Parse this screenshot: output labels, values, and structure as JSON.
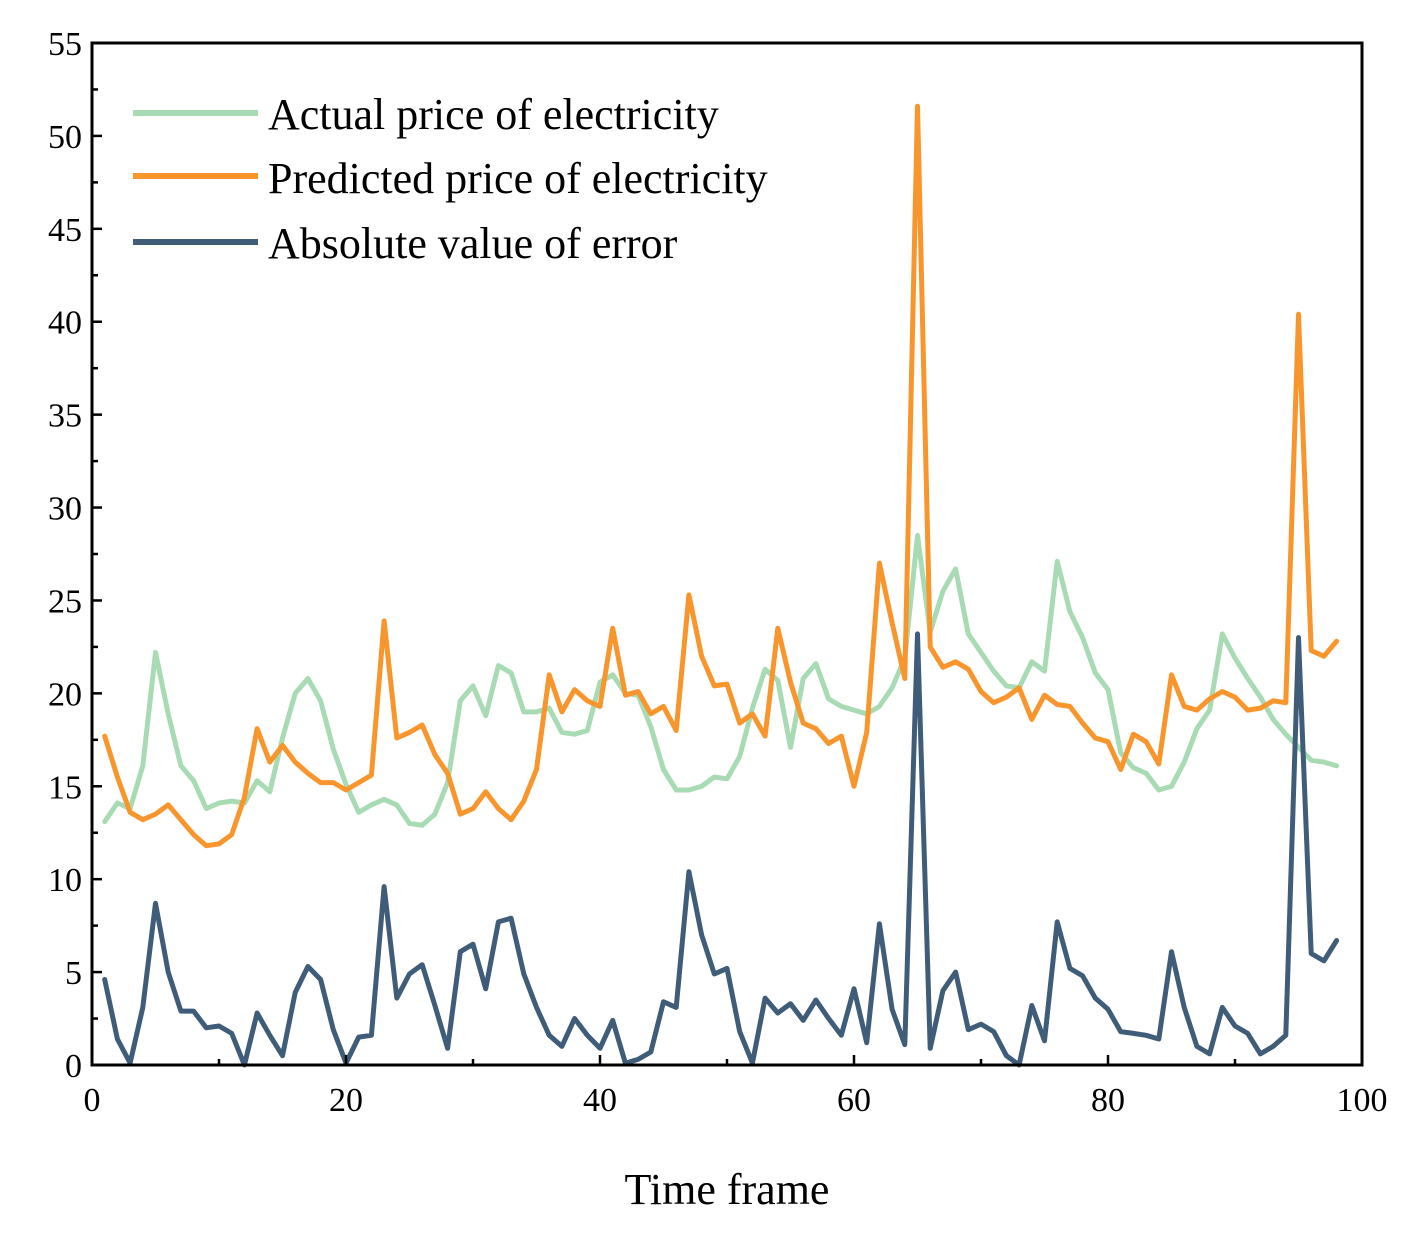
{
  "chart_data": {
    "type": "line",
    "title": "",
    "xlabel": "Time frame",
    "ylabel": "",
    "xlim": [
      0,
      100
    ],
    "ylim": [
      0,
      55
    ],
    "x_ticks": [
      0,
      20,
      40,
      60,
      80,
      100
    ],
    "y_ticks": [
      0,
      5,
      10,
      15,
      20,
      25,
      30,
      35,
      40,
      45,
      50,
      55
    ],
    "grid": false,
    "legend_position": "top-left",
    "x": [
      1,
      2,
      3,
      4,
      5,
      6,
      7,
      8,
      9,
      10,
      11,
      12,
      13,
      14,
      15,
      16,
      17,
      18,
      19,
      20,
      21,
      22,
      23,
      24,
      25,
      26,
      27,
      28,
      29,
      30,
      31,
      32,
      33,
      34,
      35,
      36,
      37,
      38,
      39,
      40,
      41,
      42,
      43,
      44,
      45,
      46,
      47,
      48,
      49,
      50,
      51,
      52,
      53,
      54,
      55,
      56,
      57,
      58,
      59,
      60,
      61,
      62,
      63,
      64,
      65,
      66,
      67,
      68,
      69,
      70,
      71,
      72,
      73,
      74,
      75,
      76,
      77,
      78,
      79,
      80,
      81,
      82,
      83,
      84,
      85,
      86,
      87,
      88,
      89,
      90,
      91,
      92,
      93,
      94,
      95,
      96,
      97,
      98
    ],
    "series": [
      {
        "name": "Actual price of electricity",
        "color": "#a8dbb4",
        "values": [
          13.1,
          14.1,
          13.8,
          16.1,
          22.2,
          18.9,
          16.1,
          15.3,
          13.8,
          14.1,
          14.2,
          14.1,
          15.3,
          14.7,
          17.6,
          20.0,
          20.8,
          19.6,
          17.0,
          15.1,
          13.6,
          14.0,
          14.3,
          14.0,
          13.0,
          12.9,
          13.5,
          15.2,
          19.6,
          20.4,
          18.8,
          21.5,
          21.1,
          19.0,
          19.0,
          19.2,
          17.9,
          17.8,
          18.0,
          20.6,
          21.0,
          20.0,
          19.9,
          18.2,
          15.9,
          14.8,
          14.8,
          15.0,
          15.5,
          15.4,
          16.6,
          19.2,
          21.3,
          20.7,
          17.1,
          20.8,
          21.6,
          19.7,
          19.3,
          19.1,
          18.9,
          19.3,
          20.3,
          21.9,
          28.5,
          23.3,
          25.5,
          26.7,
          23.2,
          22.2,
          21.2,
          20.4,
          20.3,
          21.7,
          21.2,
          27.1,
          24.4,
          23.0,
          21.1,
          20.2,
          16.8,
          16.0,
          15.7,
          14.8,
          15.0,
          16.3,
          18.1,
          19.1,
          23.2,
          21.9,
          20.8,
          19.8,
          18.6,
          17.8,
          17.1,
          16.4,
          16.3,
          16.1
        ]
      },
      {
        "name": "Predicted price of electricity",
        "color": "#f8962d",
        "values": [
          17.7,
          15.5,
          13.6,
          13.2,
          13.5,
          14.0,
          13.2,
          12.4,
          11.8,
          11.9,
          12.4,
          14.4,
          18.1,
          16.3,
          17.2,
          16.3,
          15.7,
          15.2,
          15.2,
          14.8,
          15.2,
          15.6,
          23.9,
          17.6,
          17.9,
          18.3,
          16.7,
          15.7,
          13.5,
          13.8,
          14.7,
          13.8,
          13.2,
          14.2,
          15.9,
          21.0,
          19.0,
          20.2,
          19.6,
          19.3,
          23.5,
          19.9,
          20.1,
          18.9,
          19.3,
          18.0,
          25.3,
          22.0,
          20.4,
          20.5,
          18.4,
          18.9,
          17.7,
          23.5,
          20.6,
          18.4,
          18.1,
          17.3,
          17.7,
          15.0,
          17.9,
          27.0,
          23.8,
          20.8,
          51.6,
          22.5,
          21.4,
          21.7,
          21.3,
          20.1,
          19.5,
          19.8,
          20.3,
          18.6,
          19.9,
          19.4,
          19.3,
          18.4,
          17.6,
          17.4,
          15.9,
          17.8,
          17.4,
          16.2,
          21.0,
          19.3,
          19.1,
          19.7,
          20.1,
          19.8,
          19.1,
          19.2,
          19.6,
          19.5,
          40.4,
          22.3,
          22.0,
          22.8
        ]
      },
      {
        "name": "Absolute value of error",
        "color": "#3f5d78",
        "values": [
          4.6,
          1.4,
          0.1,
          3.1,
          8.7,
          5.0,
          2.9,
          2.9,
          2.0,
          2.1,
          1.7,
          0.0,
          2.8,
          1.6,
          0.5,
          3.9,
          5.3,
          4.6,
          1.9,
          0.1,
          1.5,
          1.6,
          9.6,
          3.6,
          4.9,
          5.4,
          3.2,
          0.9,
          6.1,
          6.5,
          4.1,
          7.7,
          7.9,
          4.9,
          3.1,
          1.6,
          1.0,
          2.5,
          1.6,
          0.9,
          2.4,
          0.1,
          0.3,
          0.7,
          3.4,
          3.1,
          10.4,
          7.0,
          4.9,
          5.2,
          1.8,
          0.1,
          3.6,
          2.8,
          3.3,
          2.4,
          3.5,
          2.5,
          1.6,
          4.1,
          1.2,
          7.6,
          3.0,
          1.1,
          23.2,
          0.9,
          4.0,
          5.0,
          1.9,
          2.2,
          1.8,
          0.5,
          0.0,
          3.2,
          1.3,
          7.7,
          5.2,
          4.8,
          3.6,
          3.0,
          1.8,
          1.7,
          1.6,
          1.4,
          6.1,
          3.1,
          1.0,
          0.6,
          3.1,
          2.1,
          1.7,
          0.6,
          1.0,
          1.6,
          23.0,
          6.0,
          5.6,
          6.7
        ]
      }
    ]
  }
}
